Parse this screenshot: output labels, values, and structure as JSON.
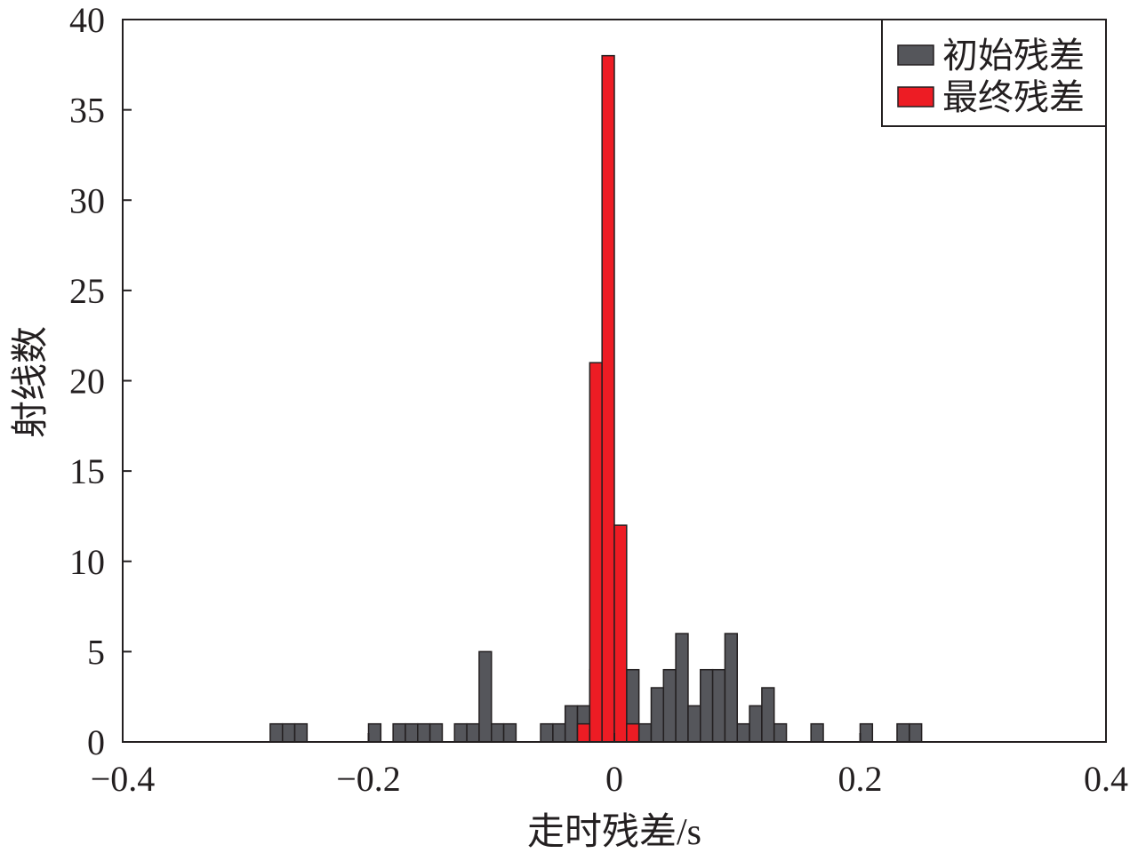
{
  "chart_data": {
    "type": "bar",
    "title": "",
    "xlabel": "走时残差/s",
    "ylabel": "射线数",
    "xlim": [
      -0.4,
      0.4
    ],
    "ylim": [
      0,
      40
    ],
    "bin_width": 0.01,
    "x_ticks": [
      {
        "value": -0.4,
        "label": "−0.4"
      },
      {
        "value": -0.2,
        "label": "−0.2"
      },
      {
        "value": 0,
        "label": "0"
      },
      {
        "value": 0.2,
        "label": "0.2"
      },
      {
        "value": 0.4,
        "label": "0.4"
      }
    ],
    "y_ticks": [
      {
        "value": 0,
        "label": "0"
      },
      {
        "value": 5,
        "label": "5"
      },
      {
        "value": 10,
        "label": "10"
      },
      {
        "value": 15,
        "label": "15"
      },
      {
        "value": 20,
        "label": "20"
      },
      {
        "value": 25,
        "label": "25"
      },
      {
        "value": 30,
        "label": "30"
      },
      {
        "value": 35,
        "label": "35"
      },
      {
        "value": 40,
        "label": "40"
      }
    ],
    "grid": false,
    "legend_position": "top-right",
    "series": [
      {
        "name": "初始残差",
        "color": "#55565b",
        "bins": [
          {
            "x": -0.275,
            "count": 1
          },
          {
            "x": -0.265,
            "count": 1
          },
          {
            "x": -0.255,
            "count": 1
          },
          {
            "x": -0.195,
            "count": 1
          },
          {
            "x": -0.175,
            "count": 1
          },
          {
            "x": -0.165,
            "count": 1
          },
          {
            "x": -0.155,
            "count": 1
          },
          {
            "x": -0.145,
            "count": 1
          },
          {
            "x": -0.125,
            "count": 1
          },
          {
            "x": -0.115,
            "count": 1
          },
          {
            "x": -0.105,
            "count": 5
          },
          {
            "x": -0.095,
            "count": 1
          },
          {
            "x": -0.085,
            "count": 1
          },
          {
            "x": -0.055,
            "count": 1
          },
          {
            "x": -0.045,
            "count": 1
          },
          {
            "x": -0.035,
            "count": 2
          },
          {
            "x": -0.025,
            "count": 2
          },
          {
            "x": -0.015,
            "count": 4
          },
          {
            "x": -0.005,
            "count": 1
          },
          {
            "x": 0.005,
            "count": 1
          },
          {
            "x": 0.015,
            "count": 4
          },
          {
            "x": 0.025,
            "count": 1
          },
          {
            "x": 0.035,
            "count": 3
          },
          {
            "x": 0.045,
            "count": 4
          },
          {
            "x": 0.055,
            "count": 6
          },
          {
            "x": 0.065,
            "count": 2
          },
          {
            "x": 0.075,
            "count": 4
          },
          {
            "x": 0.085,
            "count": 4
          },
          {
            "x": 0.095,
            "count": 6
          },
          {
            "x": 0.105,
            "count": 1
          },
          {
            "x": 0.115,
            "count": 2
          },
          {
            "x": 0.125,
            "count": 3
          },
          {
            "x": 0.135,
            "count": 1
          },
          {
            "x": 0.165,
            "count": 1
          },
          {
            "x": 0.205,
            "count": 1
          },
          {
            "x": 0.235,
            "count": 1
          },
          {
            "x": 0.245,
            "count": 1
          }
        ]
      },
      {
        "name": "最终残差",
        "color": "#ed1c24",
        "bins": [
          {
            "x": -0.025,
            "count": 1
          },
          {
            "x": -0.015,
            "count": 21
          },
          {
            "x": -0.005,
            "count": 38
          },
          {
            "x": 0.005,
            "count": 12
          },
          {
            "x": 0.015,
            "count": 1
          }
        ]
      }
    ]
  }
}
